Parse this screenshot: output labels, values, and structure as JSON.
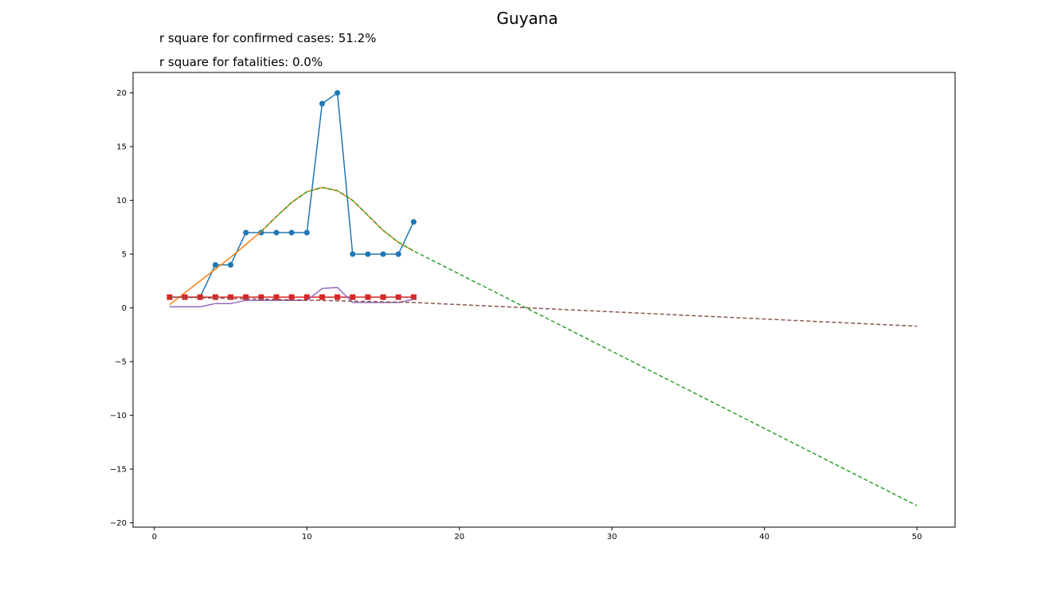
{
  "chart_data": {
    "type": "line",
    "title": "Guyana",
    "annotations": [
      "r square for confirmed cases: 51.2%",
      "r square for fatalities: 0.0%"
    ],
    "xlabel": "",
    "ylabel": "",
    "xlim": [
      -1.4,
      52.5
    ],
    "ylim": [
      -20.4,
      21.9
    ],
    "xticks": [
      0,
      10,
      20,
      30,
      40,
      50
    ],
    "yticks": [
      -20,
      -15,
      -10,
      -5,
      0,
      5,
      10,
      15,
      20
    ],
    "grid": false,
    "legend": "none",
    "series": [
      {
        "role": "confirmed-actual",
        "color": "#1f77b4",
        "style": "solid",
        "marker": "circle",
        "x": [
          1,
          2,
          3,
          4,
          5,
          6,
          7,
          8,
          9,
          10,
          11,
          12,
          13,
          14,
          15,
          16,
          17
        ],
        "y": [
          1,
          1,
          1,
          4,
          4,
          7,
          7,
          7,
          7,
          7,
          19,
          20,
          5,
          5,
          5,
          5,
          8
        ]
      },
      {
        "role": "confirmed-fit",
        "color": "#ff7f0e",
        "style": "solid",
        "marker": "none",
        "x": [
          1,
          2,
          3,
          4,
          5,
          6,
          7,
          8,
          9,
          10,
          11,
          12,
          13,
          14,
          15,
          16,
          17
        ],
        "y": [
          0.3,
          1.4,
          2.5,
          3.6,
          4.7,
          5.9,
          7.1,
          8.5,
          9.8,
          10.8,
          11.2,
          10.9,
          10.0,
          8.6,
          7.2,
          6.1,
          5.3
        ]
      },
      {
        "role": "confirmed-projection",
        "color": "#2ca02c",
        "style": "dashed",
        "marker": "none",
        "x": [
          7,
          8,
          9,
          10,
          11,
          12,
          13,
          14,
          15,
          16,
          17,
          50
        ],
        "y": [
          7.1,
          8.5,
          9.8,
          10.8,
          11.2,
          10.9,
          10.0,
          8.6,
          7.2,
          6.1,
          5.3,
          -18.4
        ]
      },
      {
        "role": "fatalities-actual",
        "color": "#d62728",
        "style": "solid",
        "marker": "square",
        "x": [
          1,
          2,
          3,
          4,
          5,
          6,
          7,
          8,
          9,
          10,
          11,
          12,
          13,
          14,
          15,
          16,
          17
        ],
        "y": [
          1,
          1,
          1,
          1,
          1,
          1,
          1,
          1,
          1,
          1,
          1,
          1,
          1,
          1,
          1,
          1,
          1
        ]
      },
      {
        "role": "fatalities-fit",
        "color": "#9467bd",
        "style": "solid",
        "marker": "none",
        "x": [
          1,
          2,
          3,
          4,
          5,
          6,
          7,
          8,
          9,
          10,
          11,
          12,
          13,
          14,
          15,
          16,
          17
        ],
        "y": [
          0.1,
          0.1,
          0.1,
          0.4,
          0.4,
          0.7,
          0.7,
          0.7,
          0.7,
          0.7,
          1.8,
          1.9,
          0.5,
          0.5,
          0.5,
          0.5,
          0.8
        ]
      },
      {
        "role": "fatalities-projection",
        "color": "#8c564b",
        "style": "dashed",
        "marker": "none",
        "x": [
          1,
          17,
          50
        ],
        "y": [
          1.0,
          0.5,
          -1.7
        ]
      }
    ]
  }
}
